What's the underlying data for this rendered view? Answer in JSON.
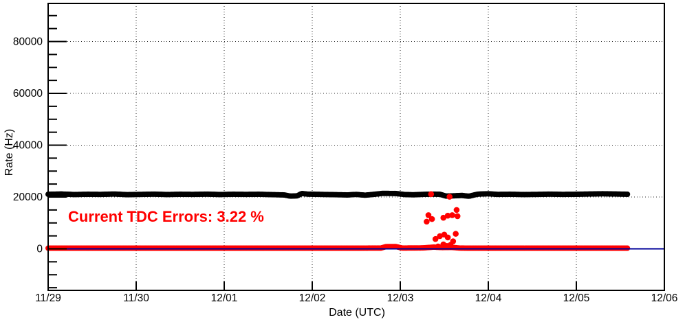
{
  "chart_data": {
    "type": "scatter",
    "title": "",
    "xlabel": "Date (UTC)",
    "ylabel": "Rate (Hz)",
    "grid": "dotted",
    "legend": "none",
    "x_axis": {
      "tick_labels": [
        "11/29",
        "11/30",
        "12/01",
        "12/02",
        "12/03",
        "12/04",
        "12/05",
        "12/06"
      ],
      "range_days": [
        0,
        7
      ]
    },
    "y_axis": {
      "major_ticks": [
        0,
        20000,
        40000,
        60000,
        80000
      ],
      "minor_step": 5000,
      "ylim": [
        -16030,
        94700
      ]
    },
    "annotation": {
      "text": "Current TDC Errors: 3.22 %",
      "color": "#ff0000"
    },
    "colors": {
      "total_rate": "#000000",
      "tdc_errors": "#ff0000",
      "zero_line": "#000099",
      "grid": "#000000",
      "axis": "#000000"
    },
    "series": [
      {
        "name": "total-rate-band",
        "render": "marker-band",
        "color": "#000000",
        "marker_radius": 4,
        "points": [
          [
            0.0,
            21050
          ],
          [
            0.15,
            21150
          ],
          [
            0.3,
            20950
          ],
          [
            0.45,
            21050
          ],
          [
            0.6,
            21000
          ],
          [
            0.75,
            21150
          ],
          [
            0.9,
            20900
          ],
          [
            1.05,
            21000
          ],
          [
            1.2,
            21100
          ],
          [
            1.35,
            20950
          ],
          [
            1.5,
            21050
          ],
          [
            1.65,
            21000
          ],
          [
            1.8,
            21100
          ],
          [
            1.95,
            20950
          ],
          [
            2.1,
            21050
          ],
          [
            2.25,
            21000
          ],
          [
            2.4,
            21050
          ],
          [
            2.55,
            20900
          ],
          [
            2.68,
            20800
          ],
          [
            2.75,
            20350
          ],
          [
            2.83,
            20450
          ],
          [
            2.88,
            21350
          ],
          [
            2.95,
            21100
          ],
          [
            3.1,
            21000
          ],
          [
            3.25,
            20900
          ],
          [
            3.4,
            20800
          ],
          [
            3.5,
            21000
          ],
          [
            3.6,
            20700
          ],
          [
            3.68,
            20950
          ],
          [
            3.8,
            21400
          ],
          [
            3.95,
            21350
          ],
          [
            4.05,
            20950
          ],
          [
            4.15,
            20850
          ],
          [
            4.25,
            21000
          ],
          [
            4.35,
            21100
          ],
          [
            4.45,
            21050
          ],
          [
            4.52,
            20350
          ],
          [
            4.6,
            20450
          ],
          [
            4.7,
            20600
          ],
          [
            4.78,
            20300
          ],
          [
            4.88,
            21100
          ],
          [
            5.0,
            21250
          ],
          [
            5.1,
            21000
          ],
          [
            5.25,
            21050
          ],
          [
            5.4,
            20950
          ],
          [
            5.55,
            21000
          ],
          [
            5.7,
            21100
          ],
          [
            5.85,
            21000
          ],
          [
            6.0,
            21050
          ],
          [
            6.15,
            21150
          ],
          [
            6.3,
            21250
          ],
          [
            6.45,
            21150
          ],
          [
            6.59,
            21050
          ]
        ]
      },
      {
        "name": "tdc-error-rate-band",
        "render": "marker-band",
        "color": "#ff0000",
        "marker_radius": 4,
        "points": [
          [
            0.0,
            250
          ],
          [
            0.5,
            250
          ],
          [
            1.0,
            250
          ],
          [
            1.5,
            250
          ],
          [
            2.0,
            250
          ],
          [
            2.5,
            250
          ],
          [
            3.0,
            250
          ],
          [
            3.4,
            250
          ],
          [
            3.78,
            300
          ],
          [
            3.84,
            850
          ],
          [
            3.95,
            850
          ],
          [
            4.02,
            300
          ],
          [
            4.25,
            350
          ],
          [
            4.38,
            650
          ],
          [
            4.48,
            500
          ],
          [
            4.58,
            550
          ],
          [
            4.68,
            300
          ],
          [
            4.8,
            250
          ],
          [
            5.0,
            250
          ],
          [
            5.5,
            250
          ],
          [
            6.0,
            250
          ],
          [
            6.3,
            250
          ],
          [
            6.59,
            250
          ]
        ]
      },
      {
        "name": "tdc-error-outliers",
        "render": "markers",
        "color": "#ff0000",
        "marker_radius": 4.3,
        "points": [
          [
            4.3,
            10500
          ],
          [
            4.32,
            13000
          ],
          [
            4.35,
            21100
          ],
          [
            4.36,
            11500
          ],
          [
            4.4,
            3800
          ],
          [
            4.43,
            900
          ],
          [
            4.45,
            4900
          ],
          [
            4.49,
            12000
          ],
          [
            4.49,
            1700
          ],
          [
            4.5,
            5500
          ],
          [
            4.53,
            1100
          ],
          [
            4.54,
            12800
          ],
          [
            4.54,
            4400
          ],
          [
            4.56,
            20100
          ],
          [
            4.57,
            1500
          ],
          [
            4.59,
            13000
          ],
          [
            4.6,
            2900
          ],
          [
            4.63,
            5800
          ],
          [
            4.64,
            15000
          ],
          [
            4.65,
            12600
          ]
        ]
      },
      {
        "name": "zero-reference-line",
        "render": "line",
        "color": "#000099",
        "line_width": 2,
        "points": [
          [
            0,
            0
          ],
          [
            7,
            0
          ]
        ]
      }
    ]
  }
}
